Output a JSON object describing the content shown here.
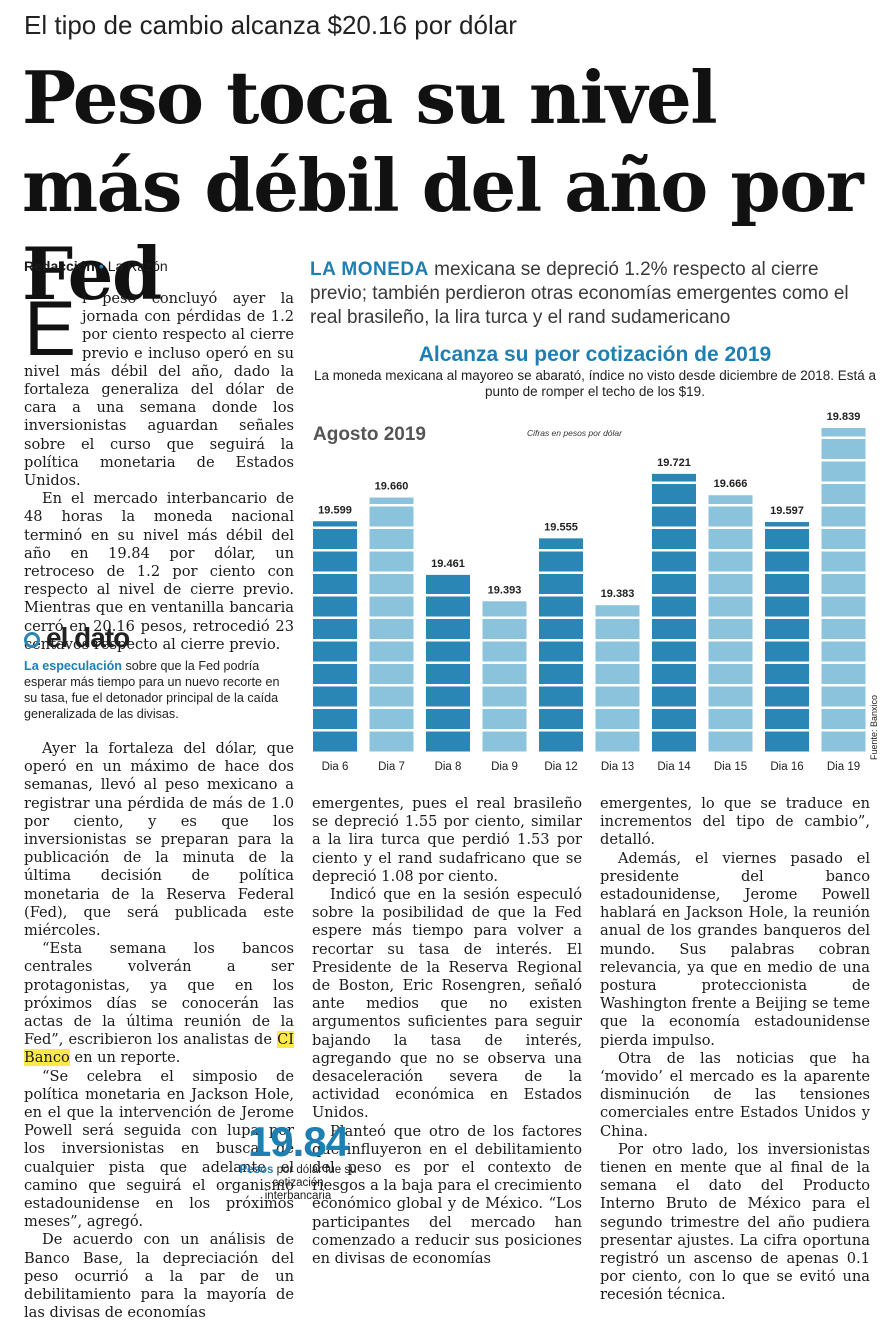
{
  "kicker": "El tipo de cambio alcanza $20.16 por dólar",
  "headline": "Peso toca su nivel más débil del año por Fed",
  "byline": {
    "author": "Redacción",
    "outlet": "La Razón"
  },
  "lead": {
    "label": "LA MONEDA",
    "text": " mexicana se depreció 1.2% respecto al cierre previo; también perdieron otras economías emergentes como el real brasileño, la lira turca y el rand sudamericano"
  },
  "column1": {
    "dropcap": "E",
    "p1": "l peso concluyó ayer la jornada con pérdidas de 1.2 por ciento respecto al cierre previo e incluso operó en su nivel más débil del año, dado la fortaleza generaliza del dólar de cara a una semana donde los inversionistas aguardan señales sobre el curso que seguirá la política monetaria de Estados Unidos.",
    "p2": "En el mercado interbancario de 48 horas la moneda nacional terminó en su nivel más débil del año en 19.84 por dólar, un retroceso de 1.2 por ciento con respecto al nivel de cierre previo. Mientras que en ventanilla bancaria cerró en 20.16 pesos, retrocedió 23 centavos respecto al cierre previo."
  },
  "eldato": {
    "title": "el dato",
    "highlight": "La especulación",
    "text": " sobre que la Fed podría esperar más tiempo para un nuevo recorte en su tasa, fue el detonador principal de la caída generalizada de las divisas."
  },
  "column1b": {
    "p1": "Ayer la fortaleza del dólar, que operó en un máximo de hace dos semanas, llevó al peso mexicano a registrar una pérdida de más de 1.0 por ciento, y es que los inversionistas se preparan para la publicación de la minuta de la última decisión de política monetaria de la Reserva Federal (Fed), que será publicada este miércoles.",
    "p2a": "“Esta semana los bancos centrales volverán a ser protagonistas, ya que en los próximos días se conocerán las actas de la última reunión de la Fed”, escribieron los analistas de ",
    "p2hl": "CI Banco",
    "p2b": " en un reporte.",
    "p3": "“Se celebra el simposio de política monetaria en Jackson Hole, en el que la intervención de Jerome Powell será seguida con lupa por los inversionistas en busca de cualquier pista que adelante el camino que seguirá el organismo estadounidense en los próximos meses”, agregó.",
    "p4": "De acuerdo con un análisis de Banco Base, la depreciación del peso ocurrió a la par de un debilitamiento para la mayoría de las divisas de economías"
  },
  "column2": {
    "p1": "emergentes, pues el real brasileño se depreció 1.55 por ciento, similar a la lira turca que perdió 1.53 por ciento y el rand sudafricano que se depreció 1.08 por ciento.",
    "p2": "Indicó que en la sesión especuló sobre la posibilidad de que la Fed espere más tiempo para volver a recortar su tasa de interés. El Presidente de la Reserva Regional de Boston, Eric Rosengren, señaló ante medios que no existen argumentos suficientes para seguir bajando la tasa de interés, agregando que no se observa una desaceleración severa de la actividad económica en Estados Unidos.",
    "p3": "Planteó que otro de los factores que influyeron en el debilitamiento del peso es por el contexto de riesgos a la baja para el crecimiento económico global y de México. “Los participantes del mercado han comenzado a reducir sus posiciones en divisas de economías"
  },
  "column3": {
    "p1": "emergentes, lo que se traduce en incrementos del tipo de cambio”, detalló.",
    "p2": "Además, el viernes pasado el presidente del banco estadounidense, Jerome Powell hablará en Jackson Hole, la reunión anual de los grandes banqueros del mundo. Sus palabras cobran relevancia, ya que en medio de una postura proteccionista de Washington frente a Beijing se teme que la economía estadounidense pierda impulso.",
    "p3": "Otra de las noticias que ha ‘movido’ el mercado es la aparente disminución de las tensiones comerciales entre Estados Unidos y China.",
    "p4": "Por otro lado, los inversionistas tienen en mente que al final de la semana el dato del Producto Interno Bruto de México para el segundo trimestre del año pudiera presentar ajustes. La cifra oportuna registró un ascenso de apenas 0.1 por ciento, con lo que se evitó una recesión técnica."
  },
  "bignum": {
    "value": "19.84",
    "bold": "Pesos",
    "text": " por dólar fue su cotización interbancaria"
  },
  "chart_data": {
    "type": "bar",
    "title": "Alcanza su peor cotización de 2019",
    "subtitle": "La moneda mexicana al mayoreo se abarató, índice no visto desde diciembre de 2018. Está a punto de romper el techo de los $19.",
    "period_label": "Agosto 2019",
    "units_note": "Cifras en pesos por dólar",
    "source": "Fuente: Banxico",
    "categories": [
      "Dia 6",
      "Dia 7",
      "Dia 8",
      "Dia 9",
      "Dia 12",
      "Dia 13",
      "Dia 14",
      "Dia 15",
      "Dia 16",
      "Dia 19"
    ],
    "values": [
      19.599,
      19.66,
      19.461,
      19.393,
      19.555,
      19.383,
      19.721,
      19.666,
      19.597,
      19.839
    ],
    "value_labels": [
      "19.599",
      "19.660",
      "19.461",
      "19.393",
      "19.555",
      "19.383",
      "19.721",
      "19.666",
      "19.597",
      "19.839"
    ],
    "colors": {
      "dark": "#2a86b4",
      "light": "#8cc3dc"
    },
    "grid": false,
    "legend": "none"
  }
}
